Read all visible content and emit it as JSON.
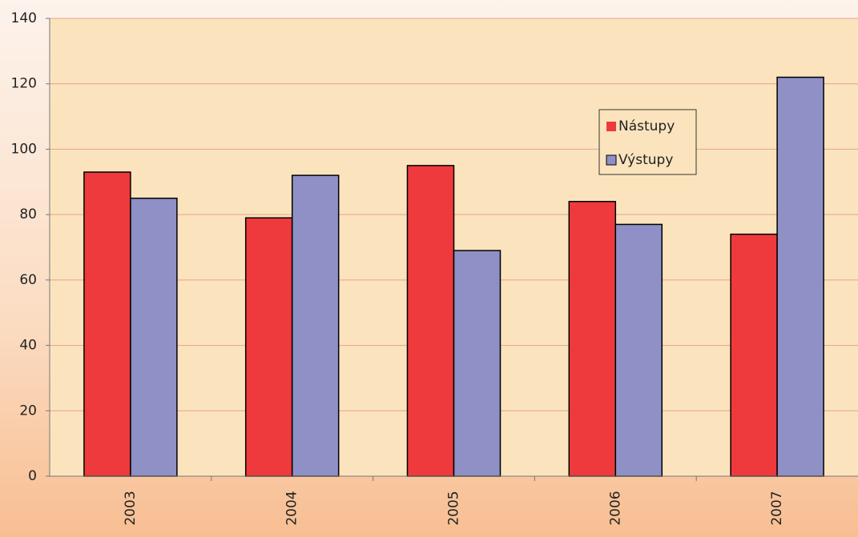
{
  "chart_data": {
    "type": "bar",
    "categories": [
      "2003",
      "2004",
      "2005",
      "2006",
      "2007"
    ],
    "series": [
      {
        "name": "Nástupy",
        "color": "#ee3a3c",
        "values": [
          93,
          79,
          95,
          84,
          74
        ]
      },
      {
        "name": "Výstupy",
        "color": "#8e90c6",
        "values": [
          85,
          92,
          69,
          77,
          122
        ]
      }
    ],
    "ylim": [
      0,
      140
    ],
    "yticks": [
      0,
      20,
      40,
      60,
      80,
      100,
      120,
      140
    ],
    "grid": true,
    "legend": "upper right"
  }
}
